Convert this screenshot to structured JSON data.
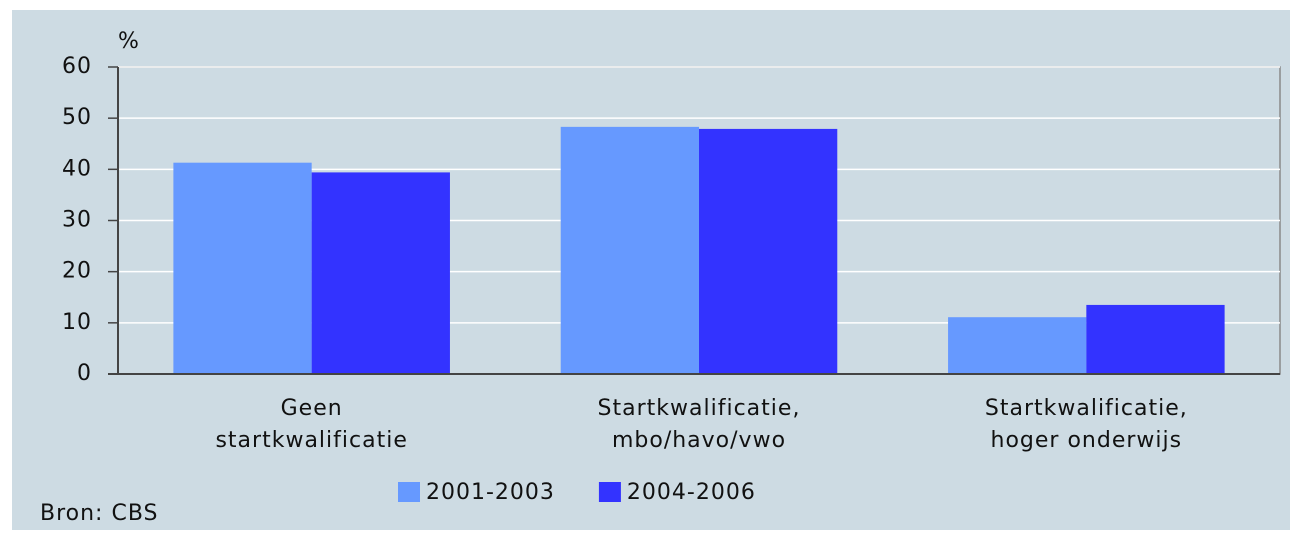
{
  "chart_data": {
    "type": "bar",
    "y_label": "%",
    "source": "Bron: CBS",
    "categories": [
      "Geen\nstartkwalificatie",
      "Startkwalificatie,\nmbo/havo/vwo",
      "Startkwalificatie,\nhoger onderwijs"
    ],
    "series": [
      {
        "name": "2001-2003",
        "color": "#6699ff",
        "values": [
          41.3,
          48.3,
          11.1
        ]
      },
      {
        "name": "2004-2006",
        "color": "#3333ff",
        "values": [
          39.4,
          47.9,
          13.5
        ]
      }
    ],
    "ylim": [
      0,
      60
    ],
    "yticks": [
      0,
      10,
      20,
      30,
      40,
      50,
      60
    ],
    "grid": true,
    "legend": "bottom"
  }
}
